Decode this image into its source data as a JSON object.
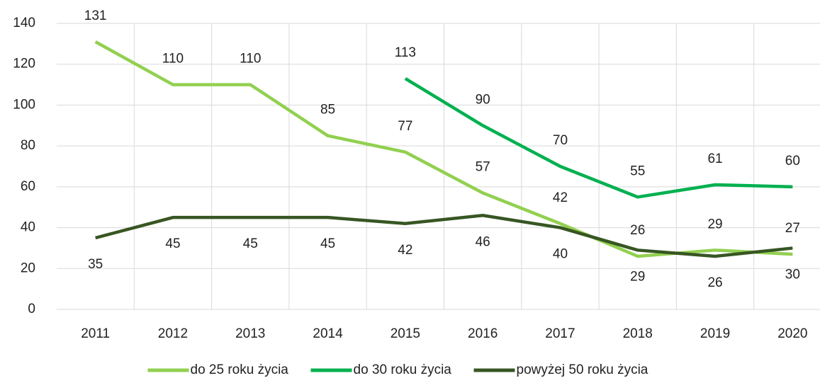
{
  "chart_data": {
    "type": "line",
    "categories": [
      "2011",
      "2012",
      "2013",
      "2014",
      "2015",
      "2016",
      "2017",
      "2018",
      "2019",
      "2020"
    ],
    "series": [
      {
        "name": "do 25 roku życia",
        "color": "#92d050",
        "values": [
          131,
          110,
          110,
          85,
          77,
          57,
          42,
          26,
          29,
          27
        ]
      },
      {
        "name": "do 30 roku życia",
        "color": "#00b050",
        "values": [
          null,
          null,
          null,
          null,
          113,
          90,
          70,
          55,
          61,
          60
        ]
      },
      {
        "name": "powyżej 50 roku życia",
        "color": "#375623",
        "values": [
          35,
          45,
          45,
          45,
          42,
          46,
          40,
          29,
          26,
          30
        ]
      }
    ],
    "ylim": [
      0,
      140
    ],
    "yticks": [
      0,
      20,
      40,
      60,
      80,
      100,
      120,
      140
    ],
    "grid": true,
    "legend": "bottom"
  }
}
